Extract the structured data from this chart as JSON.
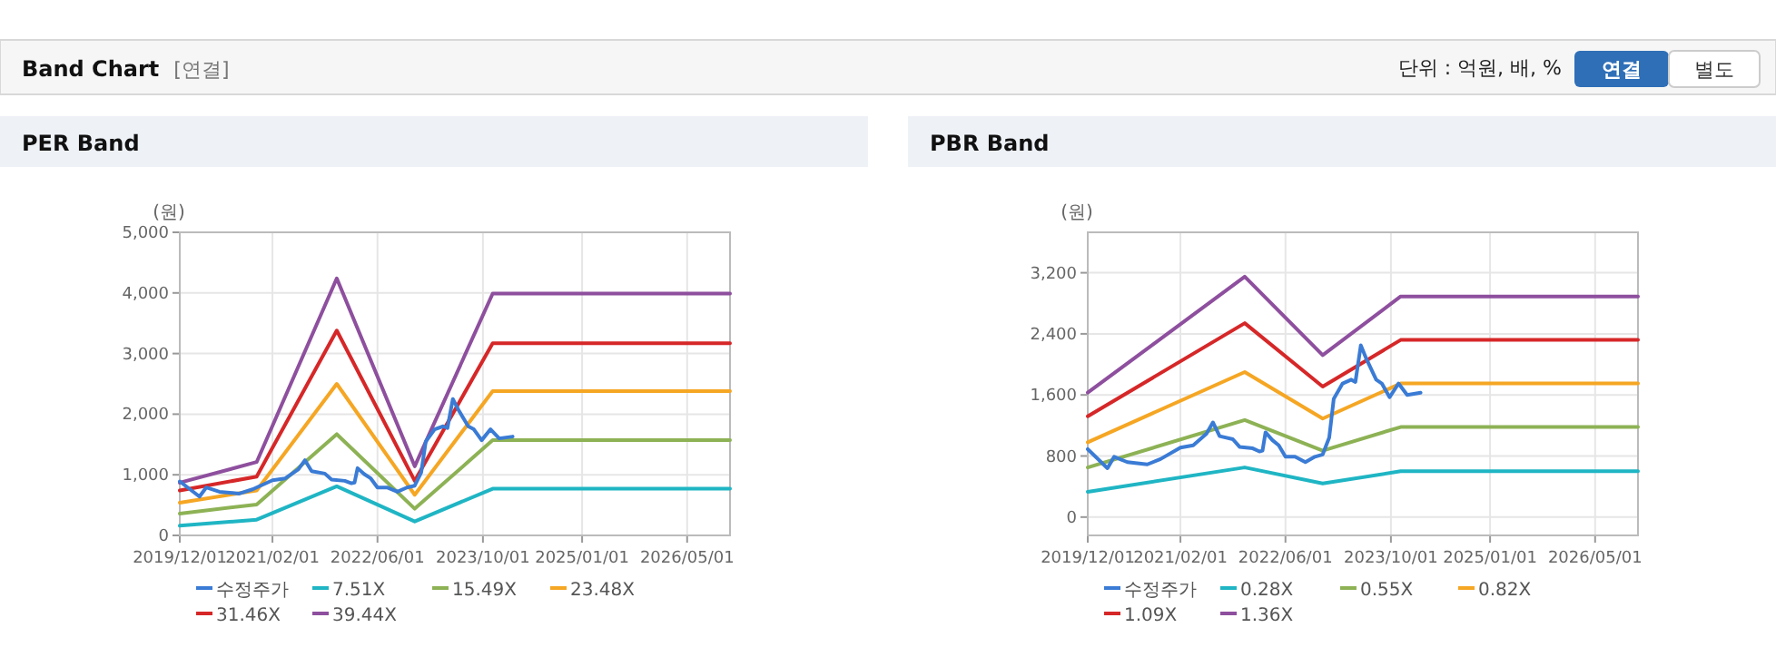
{
  "chart_data": [
    {
      "type": "other",
      "title": "Band Chart",
      "annotations": [
        "[연결]",
        "단위 : 억원, 배, %",
        "연결",
        "별도"
      ]
    },
    {
      "type": "line",
      "title": "PER Band",
      "ylabel": "(원)",
      "grid": true,
      "legend": "bottom",
      "marker": "none",
      "line_style": "solid",
      "xlim": [
        "2019-12-01",
        "2026-11-15"
      ],
      "ylim": [
        0,
        5000
      ],
      "yticks": [
        {
          "value": 0,
          "label": "0"
        },
        {
          "value": 1000,
          "label": "1,000"
        },
        {
          "value": 2000,
          "label": "2,000"
        },
        {
          "value": 3000,
          "label": "3,000"
        },
        {
          "value": 4000,
          "label": "4,000"
        },
        {
          "value": 5000,
          "label": "5,000"
        }
      ],
      "xticks": [
        {
          "value": "2019-12-01",
          "label": "2019/12/01"
        },
        {
          "value": "2021-02-01",
          "label": "2021/02/01"
        },
        {
          "value": "2022-06-01",
          "label": "2022/06/01"
        },
        {
          "value": "2023-10-01",
          "label": "2023/10/01"
        },
        {
          "value": "2025-01-01",
          "label": "2025/01/01"
        },
        {
          "value": "2026-05-01",
          "label": "2026/05/01"
        }
      ],
      "series": [
        {
          "name": "수정주가",
          "color": "#3a7bd5",
          "x": [
            "2019-12-01",
            "2020-03-01",
            "2020-04-01",
            "2020-06-01",
            "2020-09-01",
            "2020-11-01",
            "2021-02-01",
            "2021-04-01",
            "2021-06-01",
            "2021-07-01",
            "2021-08-01",
            "2021-10-01",
            "2021-11-01",
            "2022-01-01",
            "2022-02-01",
            "2022-02-15",
            "2022-03-01",
            "2022-04-01",
            "2022-05-01",
            "2022-06-01",
            "2022-07-15",
            "2022-09-01",
            "2022-10-15",
            "2022-11-20",
            "2022-12-20",
            "2023-01-10",
            "2023-02-20",
            "2023-04-01",
            "2023-04-20",
            "2023-05-15",
            "2023-06-10",
            "2023-07-25",
            "2023-08-20",
            "2023-09-25",
            "2023-11-05",
            "2023-12-15",
            "2024-02-15"
          ],
          "values": [
            890,
            640,
            790,
            720,
            690,
            760,
            910,
            940,
            1090,
            1240,
            1060,
            1020,
            920,
            900,
            860,
            870,
            1110,
            1010,
            940,
            790,
            790,
            720,
            790,
            820,
            1040,
            1550,
            1750,
            1800,
            1770,
            2250,
            2070,
            1800,
            1750,
            1570,
            1750,
            1600,
            1630
          ]
        },
        {
          "name": "7.51X",
          "color": "#1fb5c4",
          "x": [
            "2019-12-01",
            "2020-11-20",
            "2021-11-25",
            "2022-11-20",
            "2023-11-15",
            "2026-11-15"
          ],
          "values": [
            160,
            260,
            810,
            230,
            770,
            770
          ]
        },
        {
          "name": "15.49X",
          "color": "#8db255",
          "x": [
            "2019-12-01",
            "2020-11-20",
            "2021-11-25",
            "2022-11-20",
            "2023-11-15",
            "2026-11-15"
          ],
          "values": [
            360,
            510,
            1670,
            440,
            1570,
            1570
          ]
        },
        {
          "name": "23.48X",
          "color": "#f5a623",
          "x": [
            "2019-12-01",
            "2020-11-20",
            "2021-11-25",
            "2022-11-20",
            "2023-11-15",
            "2026-11-15"
          ],
          "values": [
            540,
            740,
            2500,
            670,
            2380,
            2380
          ]
        },
        {
          "name": "31.46X",
          "color": "#d62728",
          "x": [
            "2019-12-01",
            "2020-11-20",
            "2021-11-25",
            "2022-11-20",
            "2023-11-15",
            "2026-11-15"
          ],
          "values": [
            740,
            970,
            3380,
            900,
            3170,
            3170
          ]
        },
        {
          "name": "39.44X",
          "color": "#8e4f9e",
          "x": [
            "2019-12-01",
            "2020-11-20",
            "2021-11-25",
            "2022-11-20",
            "2023-11-15",
            "2026-11-15"
          ],
          "values": [
            870,
            1210,
            4240,
            1140,
            3990,
            3990
          ]
        }
      ]
    },
    {
      "type": "line",
      "title": "PBR Band",
      "ylabel": "(원)",
      "grid": true,
      "legend": "bottom",
      "marker": "none",
      "line_style": "solid",
      "xlim": [
        "2019-12-01",
        "2026-11-15"
      ],
      "ylim": [
        -240,
        3730
      ],
      "yticks": [
        {
          "value": 0,
          "label": "0"
        },
        {
          "value": 800,
          "label": "800"
        },
        {
          "value": 1600,
          "label": "1,600"
        },
        {
          "value": 2400,
          "label": "2,400"
        },
        {
          "value": 3200,
          "label": "3,200"
        }
      ],
      "xticks": [
        {
          "value": "2019-12-01",
          "label": "2019/12/01"
        },
        {
          "value": "2021-02-01",
          "label": "2021/02/01"
        },
        {
          "value": "2022-06-01",
          "label": "2022/06/01"
        },
        {
          "value": "2023-10-01",
          "label": "2023/10/01"
        },
        {
          "value": "2025-01-01",
          "label": "2025/01/01"
        },
        {
          "value": "2026-05-01",
          "label": "2026/05/01"
        }
      ],
      "series": [
        {
          "name": "수정주가",
          "color": "#3a7bd5",
          "x": [
            "2019-12-01",
            "2020-03-01",
            "2020-04-01",
            "2020-06-01",
            "2020-09-01",
            "2020-11-01",
            "2021-02-01",
            "2021-04-01",
            "2021-06-01",
            "2021-07-01",
            "2021-08-01",
            "2021-10-01",
            "2021-11-01",
            "2022-01-01",
            "2022-02-01",
            "2022-02-15",
            "2022-03-01",
            "2022-04-01",
            "2022-05-01",
            "2022-06-01",
            "2022-07-15",
            "2022-09-01",
            "2022-10-15",
            "2022-11-20",
            "2022-12-20",
            "2023-01-10",
            "2023-02-20",
            "2023-04-01",
            "2023-04-20",
            "2023-05-15",
            "2023-06-10",
            "2023-07-25",
            "2023-08-20",
            "2023-09-25",
            "2023-11-05",
            "2023-12-15",
            "2024-02-15"
          ],
          "values": [
            890,
            640,
            790,
            720,
            690,
            760,
            910,
            940,
            1090,
            1240,
            1060,
            1020,
            920,
            900,
            860,
            870,
            1110,
            1010,
            940,
            790,
            790,
            720,
            790,
            820,
            1040,
            1550,
            1750,
            1800,
            1770,
            2250,
            2070,
            1800,
            1750,
            1570,
            1750,
            1600,
            1630
          ]
        },
        {
          "name": "0.28X",
          "color": "#1fb5c4",
          "x": [
            "2019-12-01",
            "2021-11-25",
            "2022-11-20",
            "2023-11-15",
            "2026-11-15"
          ],
          "values": [
            330,
            650,
            440,
            600,
            600
          ]
        },
        {
          "name": "0.55X",
          "color": "#8db255",
          "x": [
            "2019-12-01",
            "2021-11-25",
            "2022-11-20",
            "2023-11-15",
            "2026-11-15"
          ],
          "values": [
            650,
            1270,
            870,
            1180,
            1180
          ]
        },
        {
          "name": "0.82X",
          "color": "#f5a623",
          "x": [
            "2019-12-01",
            "2021-11-25",
            "2022-11-20",
            "2023-11-15",
            "2026-11-15"
          ],
          "values": [
            980,
            1900,
            1290,
            1750,
            1750
          ]
        },
        {
          "name": "1.09X",
          "color": "#d62728",
          "x": [
            "2019-12-01",
            "2021-11-25",
            "2022-11-20",
            "2023-11-15",
            "2026-11-15"
          ],
          "values": [
            1320,
            2540,
            1710,
            2320,
            2320
          ]
        },
        {
          "name": "1.36X",
          "color": "#8e4f9e",
          "x": [
            "2019-12-01",
            "2021-11-25",
            "2022-11-20",
            "2023-11-15",
            "2026-11-15"
          ],
          "values": [
            1630,
            3150,
            2120,
            2890,
            2890
          ]
        }
      ]
    }
  ]
}
